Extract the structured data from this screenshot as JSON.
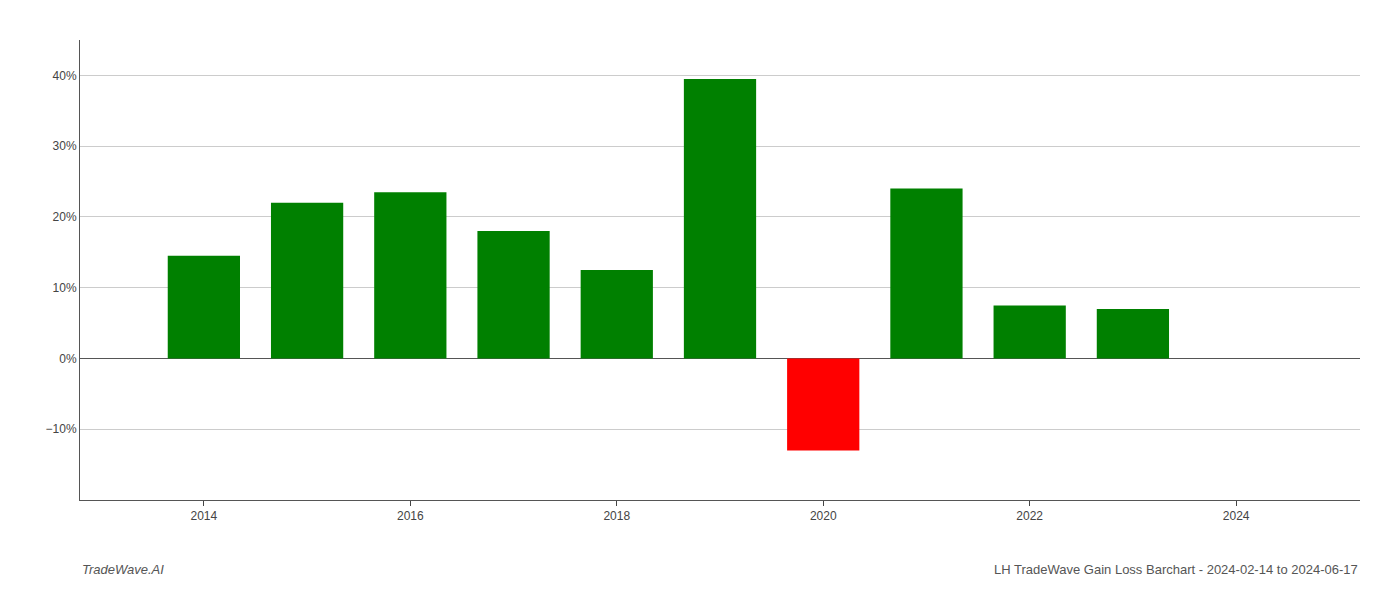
{
  "chart_data": {
    "type": "bar",
    "x": [
      2014,
      2015,
      2016,
      2017,
      2018,
      2019,
      2020,
      2021,
      2022,
      2023
    ],
    "values": [
      14.5,
      22.0,
      23.5,
      18.0,
      12.5,
      39.5,
      -13.0,
      24.0,
      7.5,
      7.0
    ],
    "colors": [
      "#008000",
      "#008000",
      "#008000",
      "#008000",
      "#008000",
      "#008000",
      "#ff0000",
      "#008000",
      "#008000",
      "#008000"
    ],
    "xlim": [
      2012.8,
      2025.2
    ],
    "xticks": [
      2014,
      2016,
      2018,
      2020,
      2022,
      2024
    ],
    "ylim": [
      -20,
      45
    ],
    "yticks": [
      {
        "value": -10,
        "label": "−10%"
      },
      {
        "value": 0,
        "label": "0%"
      },
      {
        "value": 10,
        "label": "10%"
      },
      {
        "value": 20,
        "label": "20%"
      },
      {
        "value": 30,
        "label": "30%"
      },
      {
        "value": 40,
        "label": "40%"
      }
    ],
    "grid": true,
    "annotations": [
      "TradeWave.AI",
      "LH TradeWave Gain Loss Barchart - 2024-02-14 to 2024-06-17"
    ]
  }
}
